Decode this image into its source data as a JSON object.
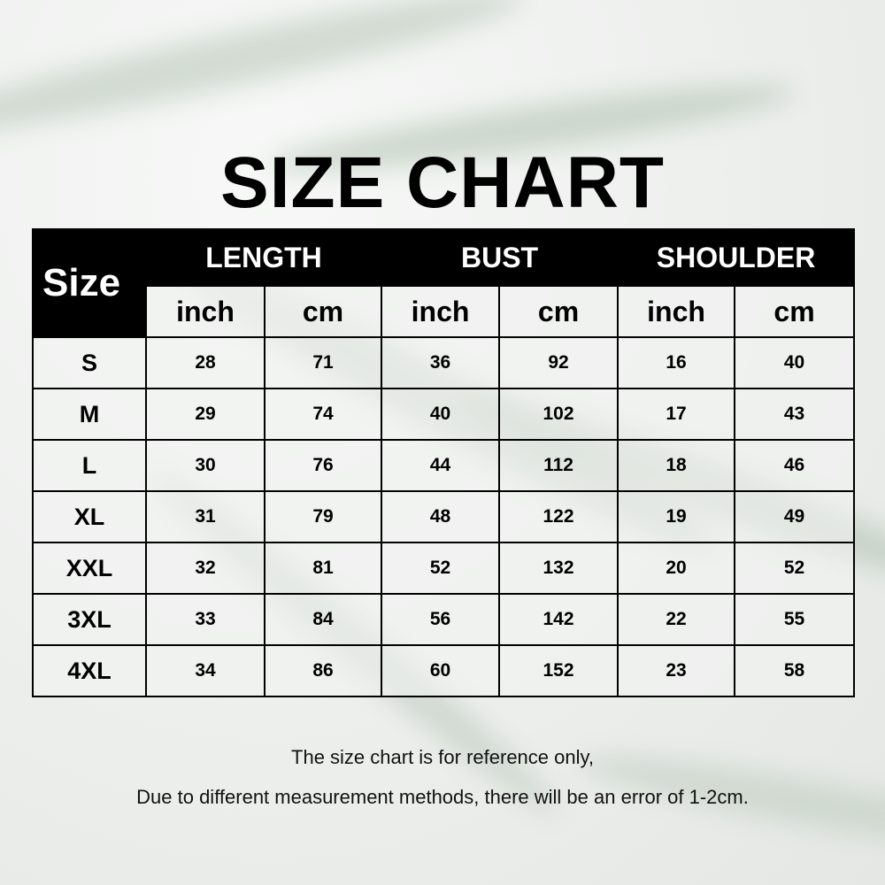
{
  "title": "SIZE CHART",
  "table": {
    "size_header": "Size",
    "groups": [
      "LENGTH",
      "BUST",
      "SHOULDER"
    ],
    "units": [
      "inch",
      "cm",
      "inch",
      "cm",
      "inch",
      "cm"
    ],
    "rows": [
      {
        "size": "S",
        "values": [
          "28",
          "71",
          "36",
          "92",
          "16",
          "40"
        ]
      },
      {
        "size": "M",
        "values": [
          "29",
          "74",
          "40",
          "102",
          "17",
          "43"
        ]
      },
      {
        "size": "L",
        "values": [
          "30",
          "76",
          "44",
          "112",
          "18",
          "46"
        ]
      },
      {
        "size": "XL",
        "values": [
          "31",
          "79",
          "48",
          "122",
          "19",
          "49"
        ]
      },
      {
        "size": "XXL",
        "values": [
          "32",
          "81",
          "52",
          "132",
          "20",
          "52"
        ]
      },
      {
        "size": "3XL",
        "values": [
          "33",
          "84",
          "56",
          "142",
          "22",
          "55"
        ]
      },
      {
        "size": "4XL",
        "values": [
          "34",
          "86",
          "60",
          "152",
          "23",
          "58"
        ]
      }
    ]
  },
  "notes": [
    "The size chart is for reference only,",
    "Due to different measurement methods, there will be an error of 1-2cm."
  ],
  "colors": {
    "header_bg": "#000000",
    "header_text": "#ffffff",
    "leaf": "#9fb59f"
  }
}
